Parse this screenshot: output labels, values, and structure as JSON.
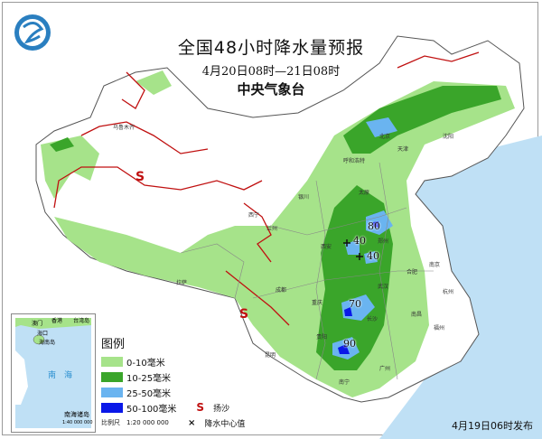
{
  "header": {
    "title": "全国48小时降水量预报",
    "period": "4月20日08时—21日08时",
    "issuer": "中央气象台"
  },
  "logo": {
    "icon": "cma-logo-icon"
  },
  "legend": {
    "heading": "图例",
    "items": [
      {
        "label": "0-10毫米",
        "color": "#a6e38a"
      },
      {
        "label": "10-25毫米",
        "color": "#3aa52a"
      },
      {
        "label": "25-50毫米",
        "color": "#6ab4f0"
      },
      {
        "label": "50-100毫米",
        "color": "#0a18e8"
      }
    ],
    "dust_label": "扬沙",
    "dust_symbol": "S",
    "center_label": "降水中心值",
    "center_symbol": "×",
    "scale": "比例尺　1:20 000 000"
  },
  "inset": {
    "sea": "南　海",
    "islands": "南海诸岛",
    "scale": "1:40 000 000",
    "labels": [
      "澳门",
      "香港",
      "台湾岛",
      "海口",
      "海南岛"
    ]
  },
  "centers": [
    "80",
    "40",
    "40",
    "70",
    "90"
  ],
  "cities": [
    "北京",
    "天津",
    "沈阳",
    "呼和浩特",
    "太原",
    "西安",
    "郑州",
    "武汉",
    "长沙",
    "重庆",
    "成都",
    "贵阳",
    "昆明",
    "南宁",
    "广州",
    "福州",
    "杭州",
    "南京",
    "合肥",
    "南昌",
    "拉萨",
    "乌鲁木齐",
    "西宁",
    "兰州",
    "银川"
  ],
  "footer": {
    "issued": "4月19日06时发布"
  },
  "colors": {
    "border": "#c01010",
    "sea": "#bfe0f5",
    "land": "#ffffff"
  }
}
